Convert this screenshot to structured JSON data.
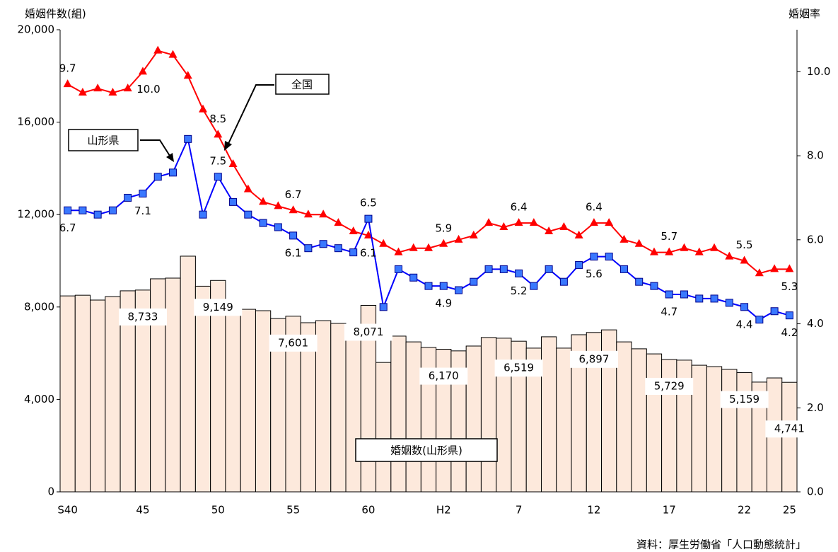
{
  "chart_data": {
    "type": "bar-line",
    "y_label": "婚姻件数(組)",
    "y2_label": "婚姻率",
    "source": "資料：厚生労働省「人口動態統計」",
    "categories": [
      "S40",
      null,
      null,
      null,
      null,
      "45",
      null,
      null,
      null,
      null,
      "50",
      null,
      null,
      null,
      null,
      "55",
      null,
      null,
      null,
      null,
      "60",
      null,
      null,
      null,
      null,
      "H2",
      null,
      null,
      null,
      null,
      "7",
      null,
      null,
      null,
      null,
      "12",
      null,
      null,
      null,
      null,
      "17",
      null,
      null,
      null,
      null,
      "22",
      null,
      null,
      "25"
    ],
    "ylim": [
      0,
      20000
    ],
    "yticks": [
      0,
      {
        "value": 4000,
        "label": "4,000"
      },
      {
        "value": 8000,
        "label": "8,000"
      },
      {
        "value": 12000,
        "label": "12,000"
      },
      {
        "value": 16000,
        "label": "16,000"
      },
      {
        "value": 20000,
        "label": "20,000"
      }
    ],
    "y2lim": [
      0,
      11
    ],
    "y2ticks": [
      {
        "value": 0,
        "label": "0.0"
      },
      {
        "value": 2,
        "label": "2.0"
      },
      {
        "value": 4,
        "label": "4.0"
      },
      {
        "value": 6,
        "label": "6.0"
      },
      {
        "value": 8,
        "label": "8.0"
      },
      {
        "value": 10,
        "label": "10.0"
      }
    ],
    "series": [
      {
        "name": "婚姻数(山形県)",
        "type": "bar",
        "color": "#fde9dc",
        "values": [
          8480,
          8510,
          8300,
          8450,
          8700,
          8733,
          9220,
          9250,
          10200,
          8900,
          9149,
          8210,
          7900,
          7840,
          7500,
          7601,
          7320,
          7410,
          7290,
          7140,
          8071,
          5600,
          6740,
          6490,
          6250,
          6170,
          6100,
          6310,
          6680,
          6650,
          6519,
          6220,
          6710,
          6220,
          6800,
          6897,
          7010,
          6490,
          6190,
          5970,
          5729,
          5700,
          5480,
          5420,
          5300,
          5159,
          4750,
          4930,
          4741
        ],
        "value_labels": [
          null,
          null,
          null,
          null,
          null,
          "8,733",
          null,
          null,
          null,
          null,
          "9,149",
          null,
          null,
          null,
          null,
          "7,601",
          null,
          null,
          null,
          null,
          "8,071",
          null,
          null,
          null,
          null,
          "6,170",
          null,
          null,
          null,
          null,
          "6,519",
          null,
          null,
          null,
          null,
          "6,897",
          null,
          null,
          null,
          null,
          "5,729",
          null,
          null,
          null,
          null,
          "5,159",
          null,
          null,
          "4,741"
        ]
      },
      {
        "name": "全国",
        "type": "line",
        "axis": "y2",
        "color": "#ff0000",
        "marker": "triangle",
        "values": [
          9.7,
          9.5,
          9.6,
          9.5,
          9.6,
          10.0,
          10.5,
          10.4,
          9.9,
          9.1,
          8.5,
          7.8,
          7.2,
          6.9,
          6.8,
          6.7,
          6.6,
          6.6,
          6.4,
          6.2,
          6.1,
          5.9,
          5.7,
          5.8,
          5.8,
          5.9,
          6.0,
          6.1,
          6.4,
          6.3,
          6.4,
          6.4,
          6.2,
          6.3,
          6.1,
          6.4,
          6.4,
          6.0,
          5.9,
          5.7,
          5.7,
          5.8,
          5.7,
          5.8,
          5.6,
          5.5,
          5.2,
          5.3,
          5.3
        ],
        "value_labels": [
          "9.7",
          null,
          null,
          null,
          null,
          "10.0",
          null,
          null,
          null,
          null,
          "8.5",
          null,
          null,
          null,
          null,
          "6.7",
          null,
          null,
          null,
          null,
          "6.1",
          null,
          null,
          null,
          null,
          "5.9",
          null,
          null,
          null,
          null,
          "6.4",
          null,
          null,
          null,
          null,
          "6.4",
          null,
          null,
          null,
          null,
          "5.7",
          null,
          null,
          null,
          null,
          "5.5",
          null,
          null,
          "5.3"
        ]
      },
      {
        "name": "山形県",
        "type": "line",
        "axis": "y2",
        "color": "#0000ff",
        "marker": "square",
        "values": [
          6.7,
          6.7,
          6.6,
          6.7,
          7.0,
          7.1,
          7.5,
          7.6,
          8.4,
          6.6,
          7.5,
          6.9,
          6.6,
          6.4,
          6.3,
          6.1,
          5.8,
          5.9,
          5.8,
          5.7,
          6.5,
          4.4,
          5.3,
          5.1,
          4.9,
          4.9,
          4.8,
          5.0,
          5.3,
          5.3,
          5.2,
          4.9,
          5.3,
          5.0,
          5.4,
          5.6,
          5.6,
          5.3,
          5.0,
          4.9,
          4.7,
          4.7,
          4.6,
          4.6,
          4.5,
          4.4,
          4.1,
          4.3,
          4.2
        ],
        "value_labels": [
          "6.7",
          null,
          null,
          null,
          null,
          "7.1",
          null,
          null,
          null,
          null,
          "7.5",
          null,
          null,
          null,
          null,
          "6.1",
          null,
          null,
          null,
          null,
          "6.5",
          null,
          null,
          null,
          null,
          "4.9",
          null,
          null,
          null,
          null,
          "5.2",
          null,
          null,
          null,
          null,
          "5.6",
          null,
          null,
          null,
          null,
          "4.7",
          null,
          null,
          null,
          null,
          "4.4",
          null,
          null,
          "4.2"
        ]
      }
    ]
  }
}
